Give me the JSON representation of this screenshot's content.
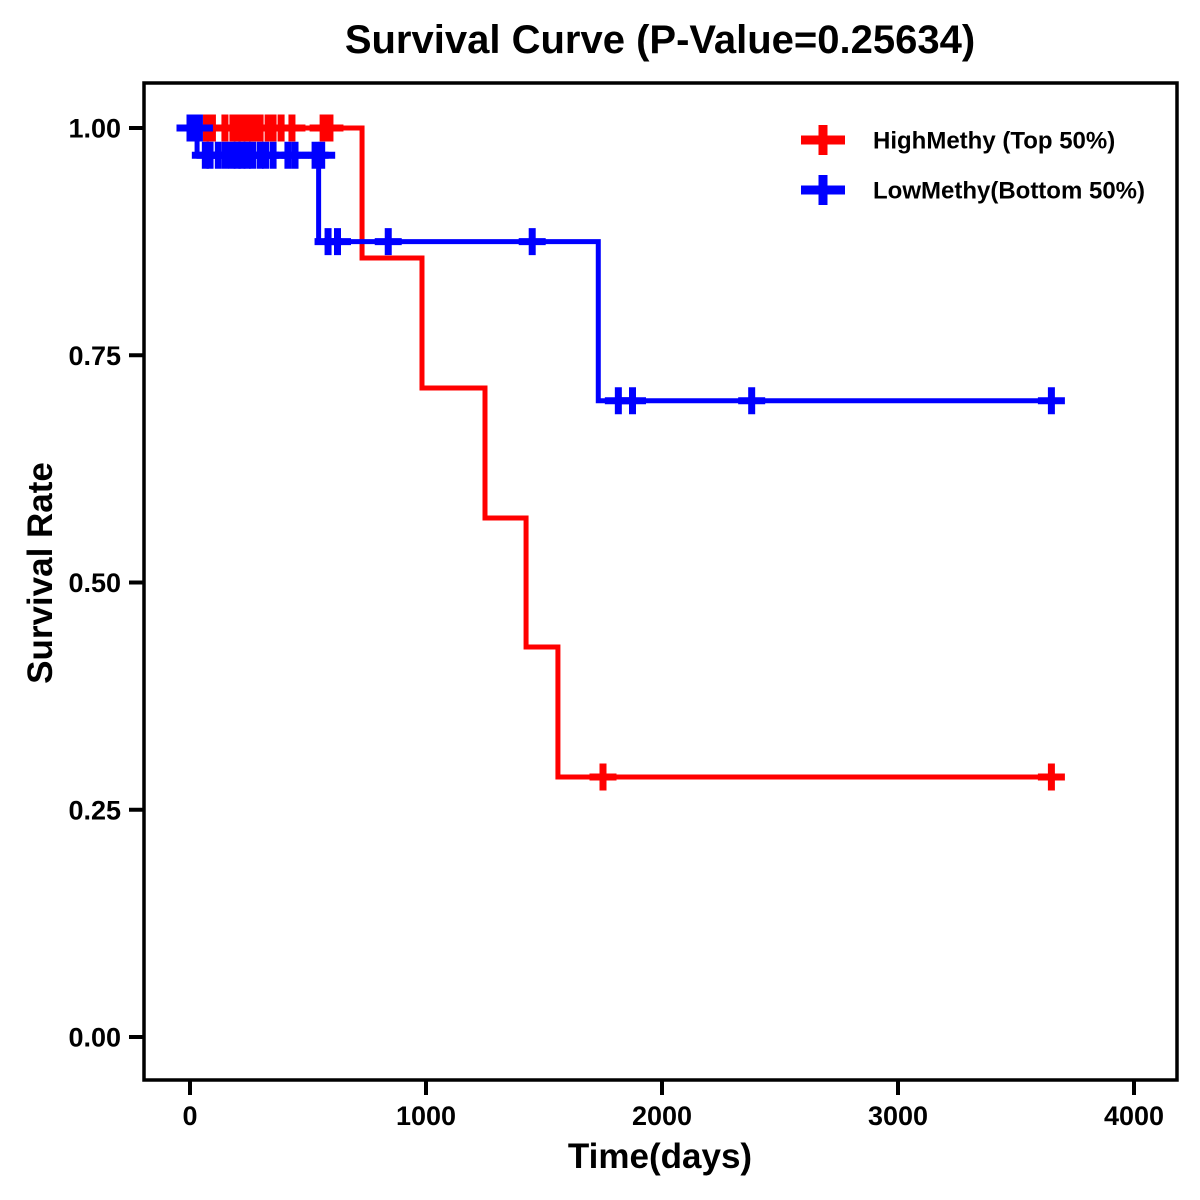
{
  "chart_data": {
    "type": "line",
    "subtype": "kaplan-meier-step",
    "title": "Survival Curve (P-Value=0.25634)",
    "p_value": "0.25634",
    "xlabel": "Time(days)",
    "ylabel": "Survival Rate",
    "xlim": [
      0,
      4000
    ],
    "ylim": [
      0.0,
      1.0
    ],
    "x_ticks": [
      0,
      1000,
      2000,
      3000,
      4000
    ],
    "x_tick_labels": [
      "0",
      "1000",
      "2000",
      "3000",
      "4000"
    ],
    "y_ticks": [
      1.0,
      0.75,
      0.5,
      0.25,
      0.0
    ],
    "y_tick_labels": [
      "1.00",
      "0.75",
      "0.50",
      "0.25",
      "0.00"
    ],
    "grid": false,
    "legend_position": "top-right",
    "axis_color": "#000000",
    "background_color": "#ffffff",
    "series": [
      {
        "name": "HighMethy (Top 50%)",
        "color": "#ff0000",
        "steps": [
          [
            0,
            1.0
          ],
          [
            729,
            0.857
          ],
          [
            983,
            0.714
          ],
          [
            1250,
            0.571
          ],
          [
            1424,
            0.429
          ],
          [
            1559,
            0.286
          ],
          [
            3650,
            0.286
          ]
        ],
        "censors": [
          [
            70,
            1.0
          ],
          [
            95,
            1.0
          ],
          [
            148,
            1.0
          ],
          [
            182,
            1.0
          ],
          [
            203,
            1.0
          ],
          [
            220,
            1.0
          ],
          [
            246,
            1.0
          ],
          [
            275,
            1.0
          ],
          [
            297,
            1.0
          ],
          [
            331,
            1.0
          ],
          [
            352,
            1.0
          ],
          [
            386,
            1.0
          ],
          [
            432,
            1.0
          ],
          [
            564,
            1.0
          ],
          [
            593,
            1.0
          ],
          [
            1750,
            0.286
          ],
          [
            3650,
            0.286
          ]
        ]
      },
      {
        "name": "LowMethy(Bottom 50%)",
        "color": "#0000ff",
        "steps": [
          [
            0,
            1.0
          ],
          [
            30,
            0.97
          ],
          [
            545,
            0.875
          ],
          [
            1730,
            0.7
          ],
          [
            3650,
            0.7
          ]
        ],
        "censors": [
          [
            0,
            1.0
          ],
          [
            10,
            1.0
          ],
          [
            25,
            1.0
          ],
          [
            40,
            1.0
          ],
          [
            65,
            0.97
          ],
          [
            85,
            0.97
          ],
          [
            120,
            0.97
          ],
          [
            150,
            0.97
          ],
          [
            178,
            0.97
          ],
          [
            200,
            0.97
          ],
          [
            220,
            0.97
          ],
          [
            242,
            0.97
          ],
          [
            265,
            0.97
          ],
          [
            297,
            0.97
          ],
          [
            320,
            0.97
          ],
          [
            352,
            0.97
          ],
          [
            415,
            0.97
          ],
          [
            445,
            0.97
          ],
          [
            530,
            0.97
          ],
          [
            558,
            0.97
          ],
          [
            585,
            0.875
          ],
          [
            625,
            0.875
          ],
          [
            840,
            0.875
          ],
          [
            1450,
            0.875
          ],
          [
            1815,
            0.7
          ],
          [
            1875,
            0.7
          ],
          [
            2380,
            0.7
          ],
          [
            3650,
            0.7
          ]
        ]
      }
    ]
  }
}
